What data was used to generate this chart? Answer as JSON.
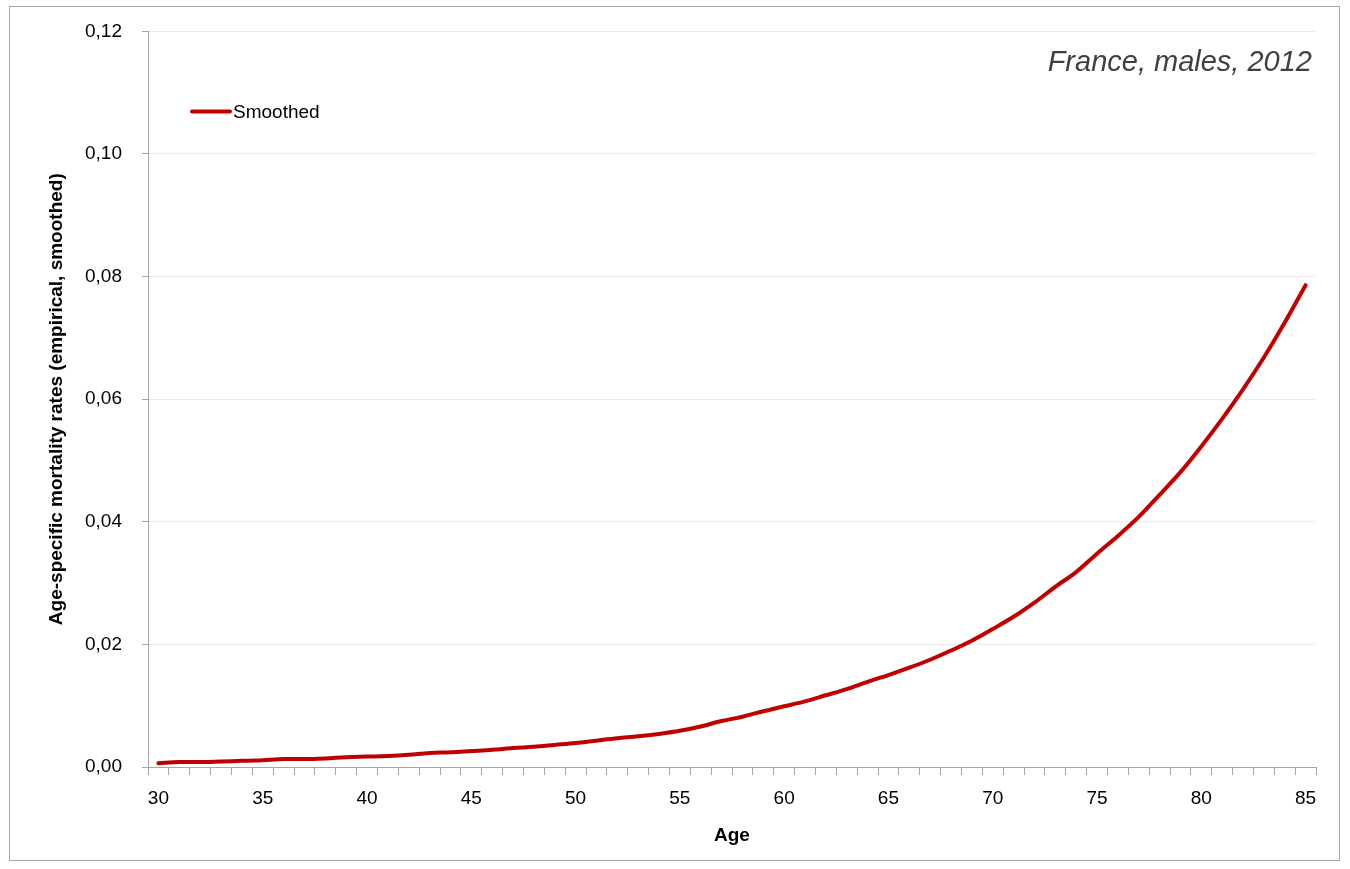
{
  "chart_data": {
    "type": "line",
    "title": "France, males, 2012",
    "xlabel": "Age",
    "ylabel": "Age-specific mortality rates (empirical, smoothed)",
    "categories": [
      "30",
      null,
      null,
      null,
      null,
      "35",
      null,
      null,
      null,
      null,
      "40",
      null,
      null,
      null,
      null,
      "45",
      null,
      null,
      null,
      null,
      "50",
      null,
      null,
      null,
      null,
      "55",
      null,
      null,
      null,
      null,
      "60",
      null,
      null,
      null,
      null,
      "65",
      null,
      null,
      null,
      null,
      "70",
      null,
      null,
      null,
      null,
      "75",
      null,
      null,
      null,
      null,
      "80",
      null,
      null,
      null,
      null,
      "85"
    ],
    "series": [
      {
        "name": "Smoothed",
        "color": "#c00000",
        "values": [
          0.0006,
          0.0008,
          0.0008,
          0.0009,
          0.001,
          0.0011,
          0.0013,
          0.0013,
          0.0014,
          0.0016,
          0.0017,
          0.0018,
          0.002,
          0.0023,
          0.0024,
          0.0026,
          0.0028,
          0.0031,
          0.0033,
          0.0036,
          0.0039,
          0.0043,
          0.0047,
          0.005,
          0.0054,
          0.0059,
          0.0066,
          0.0075,
          0.0082,
          0.0091,
          0.0099,
          0.0107,
          0.0117,
          0.0127,
          0.0139,
          0.015,
          0.0162,
          0.0175,
          0.019,
          0.0206,
          0.0225,
          0.0245,
          0.0268,
          0.0294,
          0.0318,
          0.0348,
          0.0377,
          0.0408,
          0.0444,
          0.0481,
          0.0523,
          0.0568,
          0.0616,
          0.0668,
          0.0725,
          0.0786
        ]
      }
    ],
    "ylim": [
      0,
      0.12
    ],
    "yticks": [
      {
        "value": 0,
        "label": "0,00"
      },
      {
        "value": 0.02,
        "label": "0,02"
      },
      {
        "value": 0.04,
        "label": "0,04"
      },
      {
        "value": 0.06,
        "label": "0,06"
      },
      {
        "value": 0.08,
        "label": "0,08"
      },
      {
        "value": 0.1,
        "label": "0,10"
      },
      {
        "value": 0.12,
        "label": "0,12"
      }
    ],
    "grid": "y",
    "legend": "top left",
    "marker": "none",
    "line_style": "solid"
  }
}
